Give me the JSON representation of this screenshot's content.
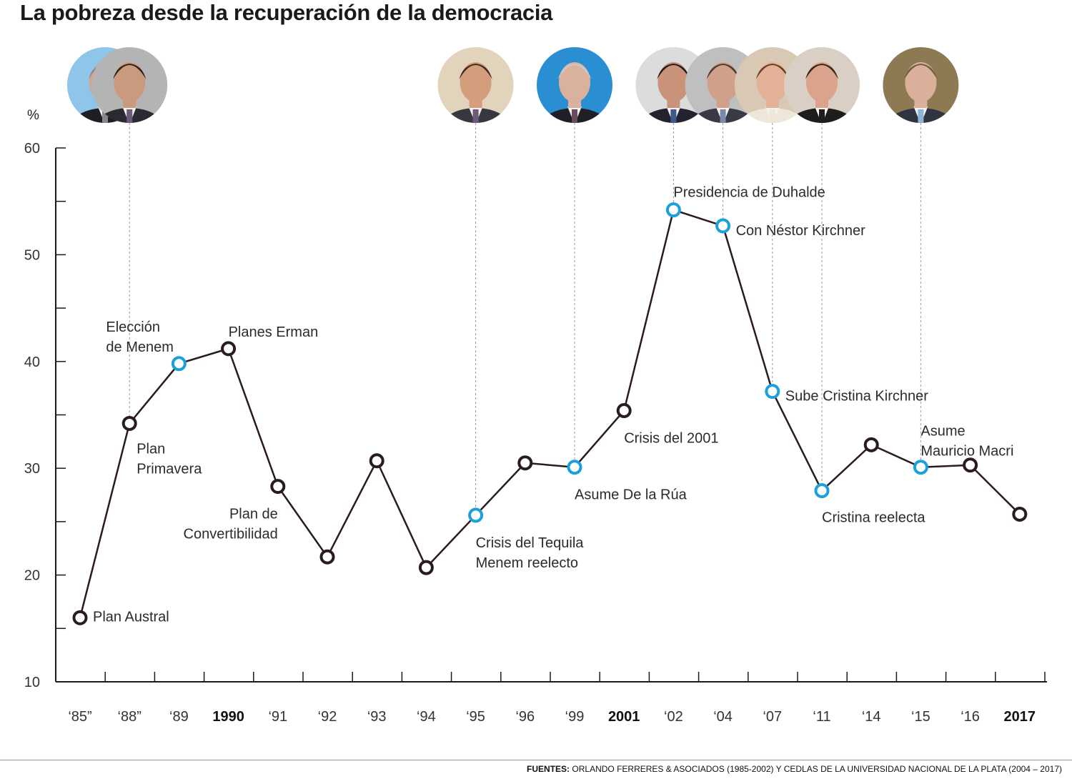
{
  "title": "La pobreza desde la recuperación de la democracia",
  "source": {
    "label": "FUENTES:",
    "text": "ORLANDO FERRERES & ASOCIADOS (1985-2002) Y CEDLAS DE LA UNIVERSIDAD NACIONAL DE LA PLATA (2004 – 2017)"
  },
  "chart_data": {
    "type": "line",
    "title": "La pobreza desde la recuperación de la democracia",
    "ylabel": "%",
    "xlabel": "",
    "ylim": [
      10,
      60
    ],
    "yticks": [
      10,
      20,
      30,
      40,
      50,
      60
    ],
    "grid": false,
    "categories": [
      "‘85”",
      "‘88”",
      "‘89",
      "1990",
      "‘91",
      "‘92",
      "‘93",
      "‘94",
      "‘95",
      "‘96",
      "‘99",
      "2001",
      "‘02",
      "‘04",
      "‘07",
      "‘11",
      "‘14",
      "‘15",
      "‘16",
      "2017"
    ],
    "bold_categories": [
      "1990",
      "2001",
      "2017"
    ],
    "values": [
      16.0,
      34.2,
      39.8,
      41.2,
      28.3,
      21.7,
      30.7,
      20.7,
      25.6,
      30.5,
      30.1,
      35.4,
      54.2,
      52.7,
      37.2,
      27.9,
      32.2,
      30.1,
      30.3,
      25.7
    ],
    "highlight_indices": [
      2,
      8,
      10,
      12,
      13,
      14,
      15,
      17
    ],
    "colors": {
      "line": "#2a1c1c",
      "normal_marker": "#2a1c1c",
      "highlight_marker": "#1ba0dc"
    },
    "annotations": [
      {
        "index": 0,
        "lines": [
          "Plan Austral"
        ]
      },
      {
        "index": 1,
        "lines": [
          "Plan",
          "Primavera"
        ]
      },
      {
        "index": 2,
        "lines": [
          "Elección",
          "de Menem"
        ]
      },
      {
        "index": 3,
        "lines": [
          "Planes Erman"
        ]
      },
      {
        "index": 4,
        "lines": [
          "Plan de",
          "Convertibilidad"
        ]
      },
      {
        "index": 8,
        "lines": [
          "Crisis del Tequila",
          "Menem reelecto"
        ]
      },
      {
        "index": 10,
        "lines": [
          "Asume De la Rúa"
        ]
      },
      {
        "index": 11,
        "lines": [
          "Crisis del 2001"
        ]
      },
      {
        "index": 12,
        "lines": [
          "Presidencia de Duhalde"
        ]
      },
      {
        "index": 13,
        "lines": [
          "Con Néstor Kirchner"
        ]
      },
      {
        "index": 14,
        "lines": [
          "Sube Cristina Kirchner"
        ]
      },
      {
        "index": 15,
        "lines": [
          "Cristina reelecta"
        ]
      },
      {
        "index": 17,
        "lines": [
          "Asume",
          "Mauricio Macri"
        ]
      }
    ],
    "portraits": [
      {
        "index": 0,
        "name": "alfonsin-portrait",
        "bg": "#8ec5e8",
        "skin": "#d7a487",
        "hair": "#8a8a8a",
        "suit": "#1e1e24",
        "tie": "#888888",
        "guide": false
      },
      {
        "index": 1,
        "name": "menem-portrait-1989",
        "bg": "#b4b4b4",
        "skin": "#c99a7d",
        "hair": "#2b2219",
        "suit": "#2a2a30",
        "tie": "#6b5a78",
        "guide": true
      },
      {
        "index": 8,
        "name": "menem-portrait-1995",
        "bg": "#e2d3bc",
        "skin": "#d49d7b",
        "hair": "#3d2b1f",
        "suit": "#37373f",
        "tie": "#6b5a78",
        "guide": true
      },
      {
        "index": 10,
        "name": "de-la-rua-portrait",
        "bg": "#2a8fd2",
        "skin": "#dab19c",
        "hair": "#c9c9c9",
        "suit": "#1f1f27",
        "tie": "#6b4b5b",
        "guide": true
      },
      {
        "index": 12,
        "name": "duhalde-portrait",
        "bg": "#dcdcdc",
        "skin": "#c9937a",
        "hair": "#1e1a18",
        "suit": "#222230",
        "tie": "#3d5a8a",
        "guide": true
      },
      {
        "index": 13,
        "name": "nestor-kirchner-portrait",
        "bg": "#bfbfbf",
        "skin": "#cfa08a",
        "hair": "#4a3a30",
        "suit": "#3a3a46",
        "tie": "#7a8aa8",
        "guide": true
      },
      {
        "index": 14,
        "name": "cristina-kirchner-portrait-2007",
        "bg": "#d8c8b4",
        "skin": "#e3b196",
        "hair": "#6b3a22",
        "suit": "#efe6da",
        "tie": "#efe6da",
        "guide": true
      },
      {
        "index": 15,
        "name": "cristina-kirchner-portrait-2011",
        "bg": "#d9cfc4",
        "skin": "#d9a48b",
        "hair": "#3a2418",
        "suit": "#1f1c1c",
        "tie": "#1f1c1c",
        "guide": true
      },
      {
        "index": 17,
        "name": "macri-portrait",
        "bg": "#8d7a52",
        "skin": "#dab09a",
        "hair": "#6f5a44",
        "suit": "#2e3440",
        "tie": "#8fb3d6",
        "guide": true
      }
    ]
  }
}
